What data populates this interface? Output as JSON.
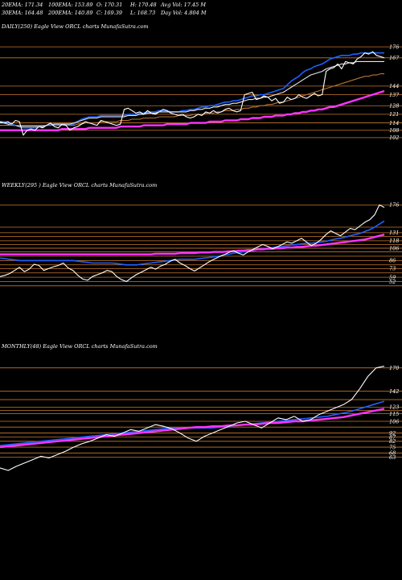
{
  "header": {
    "ema20": "20EMA: 171.34",
    "ema100": "100EMA: 153.89",
    "open": "O: 170.31",
    "high": "H: 170.48",
    "avgvol": "Avg Vol: 17.45 M",
    "ema30": "30EMA: 164.48",
    "ema200": "200EMA: 140.89",
    "close": "C: 169.39",
    "low": "L: 168.73",
    "dayvol": "Day Vol: 4.804 M"
  },
  "colors": {
    "background": "#000000",
    "price": "#ffffff",
    "ema_short": "#1f5fff",
    "ema_long": "#ff33ff",
    "ema_mid": "#b87333",
    "ema_pale": "#e8e8e8",
    "level": "#c8782a"
  },
  "chart_data": [
    {
      "type": "line",
      "title": "DAILY(250) Eagle  View ORCL charts MunafaSutra.com",
      "tick_labels": [
        "176",
        "167",
        "144",
        "137",
        "128",
        "121",
        "114",
        "108",
        "102"
      ],
      "levels": [
        176,
        167,
        144,
        137,
        128,
        121,
        114,
        108,
        102
      ],
      "ylim": [
        96,
        180
      ],
      "series": [
        {
          "role": "price",
          "color": "#ffffff",
          "values": [
            115,
            114,
            115,
            113,
            116,
            115,
            104,
            108,
            109,
            108,
            111,
            110,
            112,
            114,
            111,
            110,
            113,
            112,
            108,
            110,
            111,
            113,
            115,
            114,
            113,
            112,
            116,
            115,
            114,
            113,
            112,
            113,
            125,
            126,
            124,
            122,
            123,
            121,
            124,
            122,
            121,
            123,
            125,
            124,
            122,
            121,
            120,
            121,
            119,
            118,
            119,
            121,
            120,
            123,
            122,
            124,
            122,
            123,
            125,
            126,
            124,
            123,
            124,
            137,
            138,
            139,
            133,
            134,
            136,
            135,
            132,
            134,
            130,
            131,
            135,
            133,
            134,
            137,
            135,
            134,
            136,
            138,
            136,
            137,
            156,
            158,
            159,
            162,
            158,
            164,
            163,
            162,
            166,
            168,
            171,
            170,
            172,
            169,
            168,
            167
          ]
        },
        {
          "role": "ema20",
          "color": "#1f5fff",
          "values": [
            115,
            115,
            114,
            113,
            112,
            111,
            110,
            110,
            110,
            110,
            111,
            111,
            112,
            113,
            113,
            113,
            113,
            113,
            113,
            113,
            115,
            117,
            118,
            119,
            119,
            119,
            120,
            120,
            120,
            120,
            120,
            120,
            120,
            121,
            121,
            121,
            122,
            122,
            123,
            123,
            123,
            124,
            124,
            124,
            123,
            123,
            123,
            124,
            124,
            125,
            125,
            126,
            127,
            127,
            128,
            128,
            129,
            130,
            131,
            131,
            132,
            132,
            133,
            134,
            135,
            136,
            136,
            137,
            137,
            138,
            139,
            140,
            141,
            142,
            145,
            148,
            150,
            152,
            155,
            157,
            158,
            160,
            161,
            162,
            164,
            166,
            167,
            168,
            169,
            169,
            169,
            170,
            170,
            171,
            171,
            171,
            171,
            171,
            171,
            171
          ]
        },
        {
          "role": "ema30",
          "color": "#e8e8e8",
          "values": [
            114,
            114,
            113,
            112,
            112,
            111,
            111,
            111,
            111,
            111,
            111,
            111,
            112,
            112,
            113,
            113,
            113,
            113,
            113,
            114,
            115,
            116,
            117,
            118,
            118,
            118,
            119,
            119,
            119,
            119,
            119,
            119,
            119,
            120,
            120,
            120,
            121,
            121,
            122,
            122,
            122,
            123,
            123,
            123,
            123,
            123,
            123,
            123,
            123,
            124,
            124,
            125,
            125,
            126,
            126,
            127,
            127,
            128,
            129,
            129,
            130,
            130,
            131,
            132,
            133,
            133,
            134,
            134,
            135,
            135,
            136,
            137,
            138,
            139,
            141,
            143,
            145,
            147,
            149,
            151,
            153,
            154,
            155,
            156,
            158,
            159,
            160,
            161,
            162,
            162,
            163,
            163,
            164,
            164,
            164,
            164,
            164,
            164,
            164,
            164
          ]
        },
        {
          "role": "ema100",
          "color": "#b87333",
          "values": [
            112,
            112,
            112,
            112,
            112,
            112,
            112,
            112,
            112,
            112,
            112,
            112,
            112,
            112,
            112,
            112,
            112,
            112,
            112,
            112,
            113,
            113,
            114,
            114,
            114,
            114,
            115,
            115,
            115,
            115,
            115,
            116,
            116,
            116,
            117,
            117,
            117,
            118,
            118,
            118,
            118,
            119,
            119,
            119,
            119,
            119,
            120,
            120,
            120,
            120,
            121,
            121,
            121,
            122,
            122,
            122,
            123,
            123,
            124,
            124,
            124,
            125,
            125,
            126,
            126,
            127,
            127,
            128,
            128,
            129,
            129,
            130,
            131,
            131,
            132,
            133,
            134,
            135,
            136,
            137,
            138,
            139,
            140,
            141,
            142,
            143,
            144,
            145,
            146,
            147,
            148,
            149,
            150,
            151,
            152,
            152,
            153,
            153,
            154,
            154
          ]
        },
        {
          "role": "ema200",
          "color": "#ff33ff",
          "values": [
            108,
            108,
            108,
            108,
            108,
            108,
            108,
            108,
            108,
            108,
            108,
            108,
            108,
            108,
            108,
            108,
            109,
            109,
            109,
            109,
            109,
            109,
            109,
            110,
            110,
            110,
            110,
            110,
            110,
            110,
            110,
            111,
            111,
            111,
            111,
            111,
            111,
            112,
            112,
            112,
            112,
            112,
            112,
            113,
            113,
            113,
            113,
            113,
            113,
            114,
            114,
            114,
            114,
            114,
            115,
            115,
            115,
            115,
            116,
            116,
            116,
            116,
            117,
            117,
            117,
            118,
            118,
            118,
            119,
            119,
            119,
            120,
            120,
            120,
            121,
            121,
            122,
            122,
            123,
            123,
            124,
            124,
            125,
            125,
            126,
            127,
            127,
            128,
            129,
            130,
            131,
            132,
            133,
            134,
            135,
            136,
            137,
            138,
            139,
            140
          ]
        }
      ]
    },
    {
      "type": "line",
      "title": "WEEKLY(295                     ) Eagle  View ORCL charts MunafaSutra.com",
      "tick_labels": [
        "176",
        "131",
        "118",
        "106",
        "86",
        "73",
        "59",
        "52"
      ],
      "levels": [
        176,
        140,
        131,
        125,
        118,
        112,
        106,
        100,
        93,
        86,
        79,
        73,
        66,
        59,
        52,
        45
      ],
      "ylim": [
        -40,
        200
      ],
      "series": [
        {
          "role": "price",
          "color": "#ffffff",
          "values": [
            60,
            62,
            65,
            70,
            75,
            68,
            72,
            80,
            78,
            70,
            73,
            76,
            78,
            82,
            74,
            70,
            62,
            56,
            54,
            60,
            63,
            66,
            70,
            68,
            60,
            55,
            52,
            58,
            63,
            67,
            71,
            75,
            72,
            77,
            80,
            85,
            88,
            82,
            78,
            73,
            69,
            74,
            79,
            84,
            88,
            92,
            95,
            99,
            102,
            98,
            95,
            100,
            104,
            108,
            112,
            109,
            105,
            108,
            112,
            116,
            114,
            118,
            122,
            116,
            110,
            114,
            120,
            128,
            134,
            130,
            126,
            132,
            138,
            136,
            142,
            148,
            152,
            160,
            176,
            172
          ]
        },
        {
          "role": "ema_short",
          "color": "#1f5fff",
          "values": [
            90,
            89,
            88,
            87,
            86,
            86,
            86,
            86,
            86,
            86,
            86,
            86,
            86,
            86,
            86,
            86,
            85,
            84,
            83,
            82,
            82,
            82,
            82,
            82,
            81,
            80,
            79,
            79,
            79,
            80,
            81,
            82,
            83,
            84,
            85,
            86,
            87,
            88,
            88,
            88,
            88,
            89,
            90,
            91,
            92,
            93,
            95,
            96,
            98,
            99,
            100,
            101,
            102,
            104,
            105,
            106,
            107,
            108,
            109,
            110,
            111,
            112,
            113,
            114,
            114,
            115,
            116,
            117,
            119,
            121,
            122,
            124,
            126,
            128,
            130,
            133,
            136,
            140,
            145,
            150
          ]
        },
        {
          "role": "ema_long",
          "color": "#ff33ff",
          "values": [
            96,
            96,
            96,
            96,
            96,
            96,
            96,
            96,
            96,
            96,
            96,
            96,
            96,
            96,
            96,
            96,
            96,
            96,
            96,
            96,
            96,
            96,
            96,
            96,
            96,
            96,
            96,
            96,
            96,
            96,
            96,
            96,
            97,
            97,
            97,
            97,
            97,
            98,
            98,
            98,
            98,
            99,
            99,
            99,
            100,
            100,
            100,
            101,
            101,
            102,
            102,
            103,
            103,
            104,
            104,
            105,
            105,
            106,
            106,
            107,
            107,
            108,
            108,
            109,
            110,
            110,
            111,
            112,
            113,
            114,
            115,
            116,
            117,
            118,
            119,
            120,
            122,
            124,
            126,
            128
          ]
        }
      ]
    },
    {
      "type": "line",
      "title": "MONTHLY(48) Eagle  View ORCL charts MunafaSutra.com",
      "tick_labels": [
        "170",
        "142",
        "123",
        "115",
        "106",
        "92",
        "87",
        "82",
        "75",
        "68",
        "63"
      ],
      "levels": [
        170,
        142,
        132,
        123,
        119,
        115,
        106,
        99,
        92,
        87,
        82,
        75,
        68,
        63
      ],
      "ylim": [
        20,
        190
      ],
      "series": [
        {
          "role": "price",
          "color": "#ffffff",
          "values": [
            50,
            47,
            52,
            56,
            60,
            64,
            62,
            66,
            70,
            75,
            79,
            82,
            86,
            90,
            88,
            92,
            96,
            94,
            98,
            102,
            100,
            97,
            92,
            86,
            82,
            88,
            92,
            96,
            100,
            104,
            106,
            102,
            98,
            104,
            110,
            108,
            112,
            106,
            108,
            114,
            118,
            122,
            126,
            132,
            145,
            160,
            170,
            172
          ]
        },
        {
          "role": "ema_short",
          "color": "#1f5fff",
          "values": [
            77,
            78,
            79,
            80,
            81,
            82,
            83,
            84,
            85,
            86,
            87,
            88,
            89,
            90,
            91,
            92,
            93,
            94,
            95,
            96,
            97,
            98,
            98,
            98,
            98,
            98,
            98,
            99,
            100,
            101,
            102,
            103,
            104,
            105,
            106,
            107,
            108,
            109,
            110,
            111,
            112,
            114,
            116,
            118,
            121,
            124,
            127,
            130
          ]
        },
        {
          "role": "ema_long",
          "color": "#ff33ff",
          "values": [
            75,
            76,
            77,
            78,
            79,
            80,
            81,
            82,
            83,
            84,
            85,
            86,
            87,
            88,
            89,
            90,
            91,
            92,
            93,
            94,
            95,
            96,
            97,
            98,
            99,
            99,
            100,
            100,
            101,
            101,
            102,
            102,
            103,
            104,
            104,
            105,
            106,
            106,
            107,
            108,
            109,
            110,
            111,
            113,
            115,
            117,
            119,
            121
          ]
        }
      ]
    }
  ]
}
